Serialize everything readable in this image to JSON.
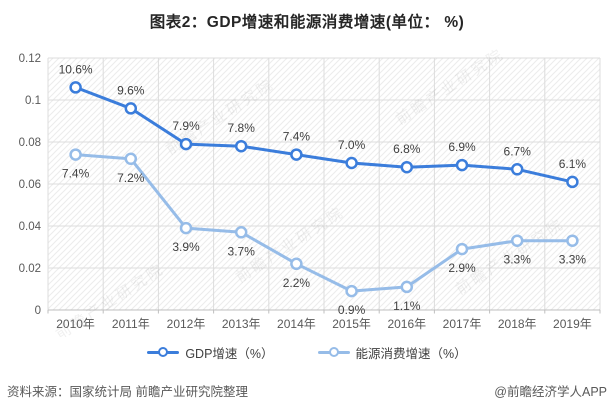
{
  "title": "图表2：GDP增速和能源消费增速(单位： %)",
  "chart_data": {
    "type": "line",
    "categories": [
      "2010年",
      "2011年",
      "2012年",
      "2013年",
      "2014年",
      "2015年",
      "2016年",
      "2017年",
      "2018年",
      "2019年"
    ],
    "series": [
      {
        "name": "GDP增速（%）",
        "values": [
          0.106,
          0.096,
          0.079,
          0.078,
          0.074,
          0.07,
          0.068,
          0.069,
          0.067,
          0.061
        ],
        "point_labels": [
          "10.6%",
          "9.6%",
          "7.9%",
          "7.8%",
          "7.4%",
          "7.0%",
          "6.8%",
          "6.9%",
          "6.7%",
          "6.1%"
        ],
        "color": "#3B7DDB",
        "label_position": "above"
      },
      {
        "name": "能源消费增速（%）",
        "values": [
          0.074,
          0.072,
          0.039,
          0.037,
          0.022,
          0.009,
          0.011,
          0.029,
          0.033,
          0.033
        ],
        "point_labels": [
          "7.4%",
          "7.2%",
          "3.9%",
          "3.7%",
          "2.2%",
          "0.9%",
          "1.1%",
          "2.9%",
          "3.3%",
          "3.3%"
        ],
        "color": "#96BCE8",
        "label_position": "below"
      }
    ],
    "ylim": [
      0,
      0.12
    ],
    "yticks": [
      "0",
      "0.02",
      "0.04",
      "0.06",
      "0.08",
      "0.1",
      "0.12"
    ],
    "grid": true,
    "legend_position": "bottom",
    "xlabel": "",
    "ylabel": ""
  },
  "footer": {
    "source": "资料来源：国家统计局 前瞻产业研究院整理",
    "credit": "@前瞻经济学人APP"
  },
  "watermark": {
    "text": "前瞻产业研究院"
  }
}
